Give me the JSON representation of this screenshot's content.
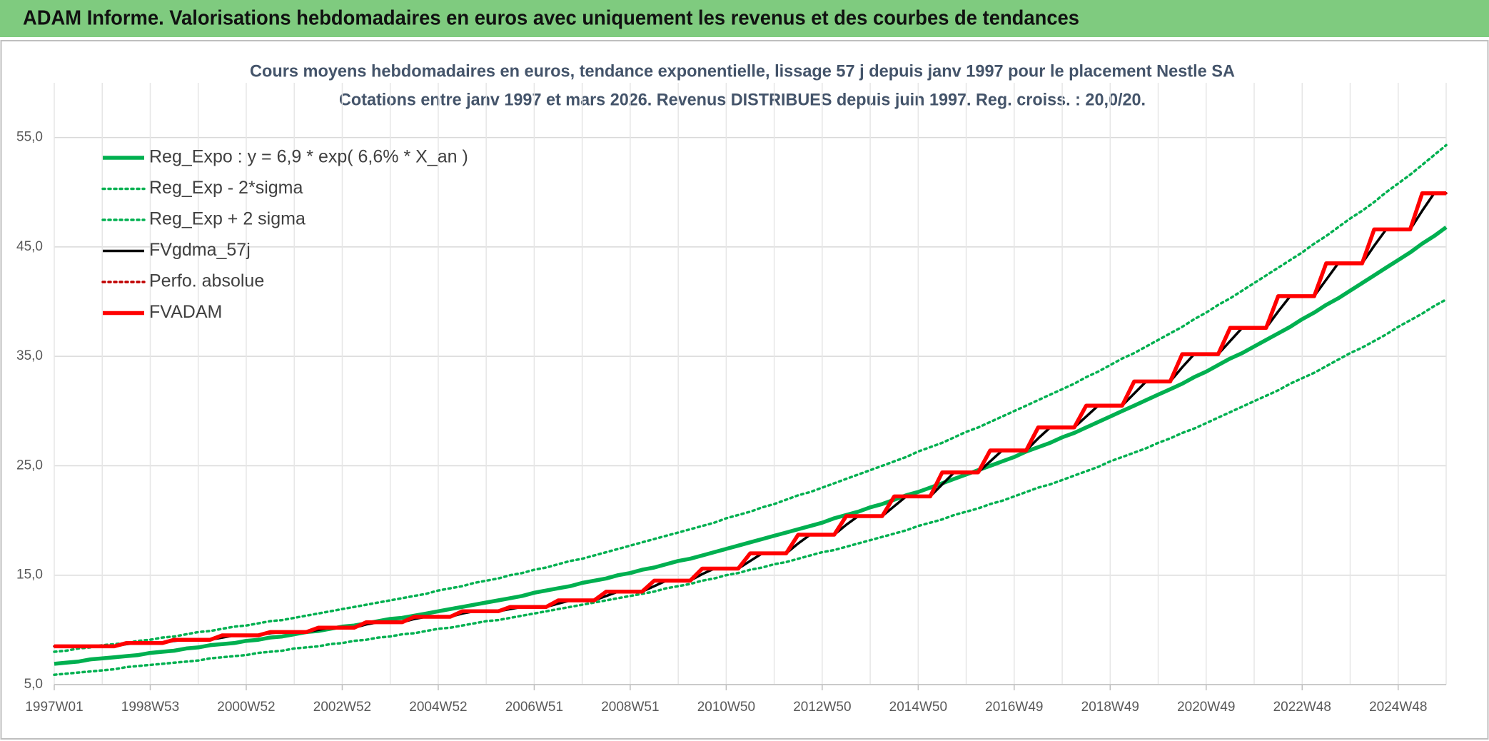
{
  "header": {
    "title": "ADAM Informe. Valorisations hebdomadaires en euros avec uniquement les revenus et des courbes de tendances"
  },
  "chart_data": {
    "type": "line",
    "title": "Cours moyens hebdomadaires en euros, tendance exponentielle, lissage 57 j depuis janv 1997 pour le placement Nestle SA",
    "subtitle": "Cotations entre janv 1997 et mars 2026. Revenus DISTRIBUES depuis juin 1997. Reg. croiss. : 20,0/20.",
    "categories": [
      "1997W01",
      null,
      null,
      null,
      null,
      null,
      null,
      null,
      "1998W53",
      null,
      null,
      null,
      null,
      null,
      null,
      null,
      "2000W52",
      null,
      null,
      null,
      null,
      null,
      null,
      null,
      "2002W52",
      null,
      null,
      null,
      null,
      null,
      null,
      null,
      "2004W52",
      null,
      null,
      null,
      null,
      null,
      null,
      null,
      "2006W51",
      null,
      null,
      null,
      null,
      null,
      null,
      null,
      "2008W51",
      null,
      null,
      null,
      null,
      null,
      null,
      null,
      "2010W50",
      null,
      null,
      null,
      null,
      null,
      null,
      null,
      "2012W50",
      null,
      null,
      null,
      null,
      null,
      null,
      null,
      "2014W50",
      null,
      null,
      null,
      null,
      null,
      null,
      null,
      "2016W49",
      null,
      null,
      null,
      null,
      null,
      null,
      null,
      "2018W49",
      null,
      null,
      null,
      null,
      null,
      null,
      null,
      "2020W49",
      null,
      null,
      null,
      null,
      null,
      null,
      null,
      "2022W48",
      null,
      null,
      null,
      null,
      null,
      null,
      null,
      "2024W48",
      null,
      null,
      null,
      null
    ],
    "ylim": [
      5,
      60
    ],
    "yticks": [
      {
        "value": 5,
        "label": "5,0"
      },
      {
        "value": 15,
        "label": "15,0"
      },
      {
        "value": 25,
        "label": "25,0"
      },
      {
        "value": 35,
        "label": "35,0"
      },
      {
        "value": 45,
        "label": "45,0"
      },
      {
        "value": 55,
        "label": "55,0"
      }
    ],
    "grid": true,
    "legend": "upper left",
    "series": [
      {
        "name": "Reg_Expo : y = 6,9 * exp( 6,6% *  X_an )",
        "color": "#00b050",
        "dash": "solid",
        "values": [
          6.9,
          7.0,
          7.1,
          7.3,
          7.4,
          7.5,
          7.6,
          7.7,
          7.9,
          8.0,
          8.1,
          8.3,
          8.4,
          8.6,
          8.7,
          8.8,
          9.0,
          9.1,
          9.3,
          9.4,
          9.6,
          9.8,
          9.9,
          10.1,
          10.3,
          10.4,
          10.6,
          10.8,
          11.0,
          11.1,
          11.3,
          11.5,
          11.7,
          11.9,
          12.1,
          12.3,
          12.5,
          12.7,
          12.9,
          13.1,
          13.4,
          13.6,
          13.8,
          14.0,
          14.3,
          14.5,
          14.7,
          15.0,
          15.2,
          15.5,
          15.7,
          16.0,
          16.3,
          16.5,
          16.8,
          17.1,
          17.4,
          17.7,
          18.0,
          18.3,
          18.6,
          18.9,
          19.2,
          19.5,
          19.8,
          20.2,
          20.5,
          20.8,
          21.2,
          21.5,
          21.9,
          22.3,
          22.6,
          23.0,
          23.4,
          23.8,
          24.2,
          24.6,
          25.0,
          25.4,
          25.8,
          26.3,
          26.7,
          27.1,
          27.6,
          28.0,
          28.5,
          29.0,
          29.5,
          30.0,
          30.5,
          31.0,
          31.5,
          32.0,
          32.5,
          33.1,
          33.6,
          34.2,
          34.8,
          35.3,
          35.9,
          36.5,
          37.1,
          37.7,
          38.4,
          39.0,
          39.7,
          40.3,
          41.0,
          41.7,
          42.4,
          43.1,
          43.8,
          44.5,
          45.3,
          46.0,
          46.8
        ]
      },
      {
        "name": "Reg_Exp - 2*sigma",
        "color": "#00b050",
        "dash": "dotted",
        "values": [
          5.9,
          6.0,
          6.1,
          6.2,
          6.3,
          6.4,
          6.6,
          6.7,
          6.8,
          6.9,
          7.0,
          7.1,
          7.2,
          7.4,
          7.5,
          7.6,
          7.7,
          7.9,
          8.0,
          8.1,
          8.3,
          8.4,
          8.5,
          8.7,
          8.8,
          9.0,
          9.1,
          9.3,
          9.4,
          9.6,
          9.7,
          9.9,
          10.1,
          10.2,
          10.4,
          10.6,
          10.8,
          10.9,
          11.1,
          11.3,
          11.5,
          11.7,
          11.9,
          12.1,
          12.3,
          12.5,
          12.7,
          12.9,
          13.1,
          13.3,
          13.5,
          13.8,
          14.0,
          14.2,
          14.5,
          14.7,
          15.0,
          15.2,
          15.5,
          15.7,
          16.0,
          16.2,
          16.5,
          16.8,
          17.1,
          17.3,
          17.6,
          17.9,
          18.2,
          18.5,
          18.8,
          19.1,
          19.5,
          19.8,
          20.1,
          20.5,
          20.8,
          21.1,
          21.5,
          21.8,
          22.2,
          22.6,
          23.0,
          23.3,
          23.7,
          24.1,
          24.5,
          24.9,
          25.4,
          25.8,
          26.2,
          26.6,
          27.1,
          27.5,
          28.0,
          28.4,
          28.9,
          29.4,
          29.9,
          30.4,
          30.9,
          31.4,
          31.9,
          32.5,
          33.0,
          33.5,
          34.1,
          34.7,
          35.3,
          35.8,
          36.4,
          37.0,
          37.7,
          38.3,
          38.9,
          39.6,
          40.2
        ]
      },
      {
        "name": "Reg_Exp + 2 sigma",
        "color": "#00b050",
        "dash": "dotted",
        "values": [
          8.0,
          8.1,
          8.3,
          8.4,
          8.6,
          8.7,
          8.8,
          9.0,
          9.1,
          9.3,
          9.4,
          9.6,
          9.8,
          9.9,
          10.1,
          10.3,
          10.4,
          10.6,
          10.8,
          10.9,
          11.1,
          11.3,
          11.5,
          11.7,
          11.9,
          12.1,
          12.3,
          12.5,
          12.7,
          12.9,
          13.1,
          13.3,
          13.6,
          13.8,
          14.0,
          14.3,
          14.5,
          14.7,
          15.0,
          15.2,
          15.5,
          15.7,
          16.0,
          16.3,
          16.5,
          16.8,
          17.1,
          17.4,
          17.7,
          18.0,
          18.3,
          18.6,
          18.9,
          19.2,
          19.5,
          19.8,
          20.2,
          20.5,
          20.8,
          21.2,
          21.5,
          21.9,
          22.3,
          22.6,
          23.0,
          23.4,
          23.8,
          24.2,
          24.6,
          25.0,
          25.4,
          25.8,
          26.3,
          26.7,
          27.1,
          27.6,
          28.1,
          28.5,
          29.0,
          29.5,
          30.0,
          30.5,
          31.0,
          31.5,
          32.0,
          32.5,
          33.1,
          33.6,
          34.2,
          34.8,
          35.3,
          35.9,
          36.5,
          37.1,
          37.7,
          38.4,
          39.0,
          39.7,
          40.3,
          41.0,
          41.7,
          42.4,
          43.1,
          43.8,
          44.5,
          45.3,
          46.0,
          46.8,
          47.6,
          48.3,
          49.1,
          50.0,
          50.8,
          51.6,
          52.5,
          53.4,
          54.3
        ]
      },
      {
        "name": "FVgdma_57j",
        "color": "#000000",
        "dash": "solid",
        "values": [
          8.5,
          8.5,
          8.5,
          8.5,
          8.5,
          8.5,
          8.7,
          8.8,
          8.8,
          8.8,
          9.0,
          9.1,
          9.1,
          9.1,
          9.3,
          9.5,
          9.5,
          9.5,
          9.7,
          9.8,
          9.8,
          9.8,
          10.0,
          10.2,
          10.2,
          10.2,
          10.5,
          10.7,
          10.7,
          10.7,
          11.0,
          11.2,
          11.2,
          11.2,
          11.5,
          11.7,
          11.7,
          11.7,
          11.9,
          12.1,
          12.1,
          12.1,
          12.4,
          12.7,
          12.7,
          12.7,
          13.1,
          13.5,
          13.5,
          13.5,
          14.0,
          14.5,
          14.5,
          14.5,
          15.1,
          15.6,
          15.6,
          15.6,
          16.3,
          17.0,
          17.0,
          17.0,
          17.9,
          18.7,
          18.7,
          18.7,
          19.6,
          20.4,
          20.4,
          20.4,
          21.3,
          22.2,
          22.2,
          22.2,
          23.3,
          24.4,
          24.4,
          24.4,
          25.4,
          26.4,
          26.4,
          26.4,
          27.5,
          28.5,
          28.5,
          28.5,
          29.5,
          30.5,
          30.5,
          30.5,
          31.6,
          32.7,
          32.7,
          32.7,
          34.0,
          35.2,
          35.2,
          35.2,
          36.4,
          37.6,
          37.6,
          37.6,
          39.1,
          40.5,
          40.5,
          40.5,
          42.0,
          43.5,
          43.5,
          43.5,
          45.1,
          46.6,
          46.6,
          46.6,
          48.3,
          49.9,
          49.9
        ]
      },
      {
        "name": "Perfo. absolue",
        "color": "#c00000",
        "dash": "dotted",
        "values": [
          8.5,
          8.5,
          8.5,
          8.5,
          8.5,
          8.5,
          8.8,
          8.8,
          8.8,
          8.8,
          9.1,
          9.1,
          9.1,
          9.1,
          9.5,
          9.5,
          9.5,
          9.5,
          9.8,
          9.8,
          9.8,
          9.8,
          10.2,
          10.2,
          10.2,
          10.2,
          10.7,
          10.7,
          10.7,
          10.7,
          11.2,
          11.2,
          11.2,
          11.2,
          11.7,
          11.7,
          11.7,
          11.7,
          12.1,
          12.1,
          12.1,
          12.1,
          12.7,
          12.7,
          12.7,
          12.7,
          13.5,
          13.5,
          13.5,
          13.5,
          14.5,
          14.5,
          14.5,
          14.5,
          15.6,
          15.6,
          15.6,
          15.6,
          17.0,
          17.0,
          17.0,
          17.0,
          18.7,
          18.7,
          18.7,
          18.7,
          20.4,
          20.4,
          20.4,
          20.4,
          22.2,
          22.2,
          22.2,
          22.2,
          24.4,
          24.4,
          24.4,
          24.4,
          26.4,
          26.4,
          26.4,
          26.4,
          28.5,
          28.5,
          28.5,
          28.5,
          30.5,
          30.5,
          30.5,
          30.5,
          32.7,
          32.7,
          32.7,
          32.7,
          35.2,
          35.2,
          35.2,
          35.2,
          37.6,
          37.6,
          37.6,
          37.6,
          40.5,
          40.5,
          40.5,
          40.5,
          43.5,
          43.5,
          43.5,
          43.5,
          46.6,
          46.6,
          46.6,
          46.6,
          49.9,
          49.9,
          49.9
        ]
      },
      {
        "name": "FVADAM",
        "color": "#ff0000",
        "dash": "solid",
        "values": [
          8.5,
          8.5,
          8.5,
          8.5,
          8.5,
          8.5,
          8.8,
          8.8,
          8.8,
          8.8,
          9.1,
          9.1,
          9.1,
          9.1,
          9.5,
          9.5,
          9.5,
          9.5,
          9.8,
          9.8,
          9.8,
          9.8,
          10.2,
          10.2,
          10.2,
          10.2,
          10.7,
          10.7,
          10.7,
          10.7,
          11.2,
          11.2,
          11.2,
          11.2,
          11.7,
          11.7,
          11.7,
          11.7,
          12.1,
          12.1,
          12.1,
          12.1,
          12.7,
          12.7,
          12.7,
          12.7,
          13.5,
          13.5,
          13.5,
          13.5,
          14.5,
          14.5,
          14.5,
          14.5,
          15.6,
          15.6,
          15.6,
          15.6,
          17.0,
          17.0,
          17.0,
          17.0,
          18.7,
          18.7,
          18.7,
          18.7,
          20.4,
          20.4,
          20.4,
          20.4,
          22.2,
          22.2,
          22.2,
          22.2,
          24.4,
          24.4,
          24.4,
          24.4,
          26.4,
          26.4,
          26.4,
          26.4,
          28.5,
          28.5,
          28.5,
          28.5,
          30.5,
          30.5,
          30.5,
          30.5,
          32.7,
          32.7,
          32.7,
          32.7,
          35.2,
          35.2,
          35.2,
          35.2,
          37.6,
          37.6,
          37.6,
          37.6,
          40.5,
          40.5,
          40.5,
          40.5,
          43.5,
          43.5,
          43.5,
          43.5,
          46.6,
          46.6,
          46.6,
          46.6,
          49.9,
          49.9,
          49.9
        ]
      }
    ]
  }
}
